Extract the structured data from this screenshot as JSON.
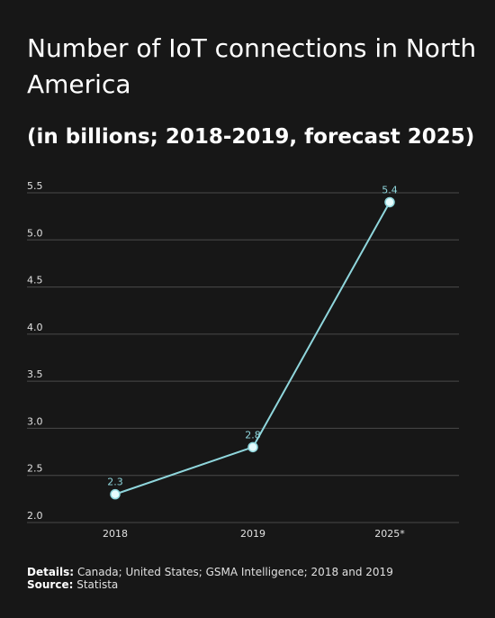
{
  "header": {
    "title": "Number of IoT connections in North America",
    "subtitle": "(in billions; 2018-2019, forecast 2025)"
  },
  "footer": {
    "details_label": "Details:",
    "details_text": "Canada; United States; GSMA Intelligence; 2018 and 2019",
    "source_label": "Source:",
    "source_text": "Statista"
  },
  "colors": {
    "background": "#171717",
    "line": "#8fd6dc",
    "marker_fill": "#e6fbfc",
    "data_label": "#8fd6dc",
    "gridline": "#4a4a4a",
    "tick_label": "#e0e0e0"
  },
  "chart_data": {
    "type": "line",
    "title": "Number of IoT connections in North America",
    "subtitle": "(in billions; 2018-2019, forecast 2025)",
    "xlabel": "",
    "ylabel": "",
    "categories": [
      "2018",
      "2019",
      "2025*"
    ],
    "series": [
      {
        "values": [
          2.3,
          2.8,
          5.4
        ],
        "data_labels": [
          "2.3",
          "2.8",
          "5.4"
        ]
      }
    ],
    "ylim": [
      2.0,
      5.5
    ],
    "yticks": [
      "2.0",
      "2.5",
      "3.0",
      "3.5",
      "4.0",
      "4.5",
      "5.0",
      "5.5"
    ],
    "grid": true,
    "legend": "none"
  }
}
